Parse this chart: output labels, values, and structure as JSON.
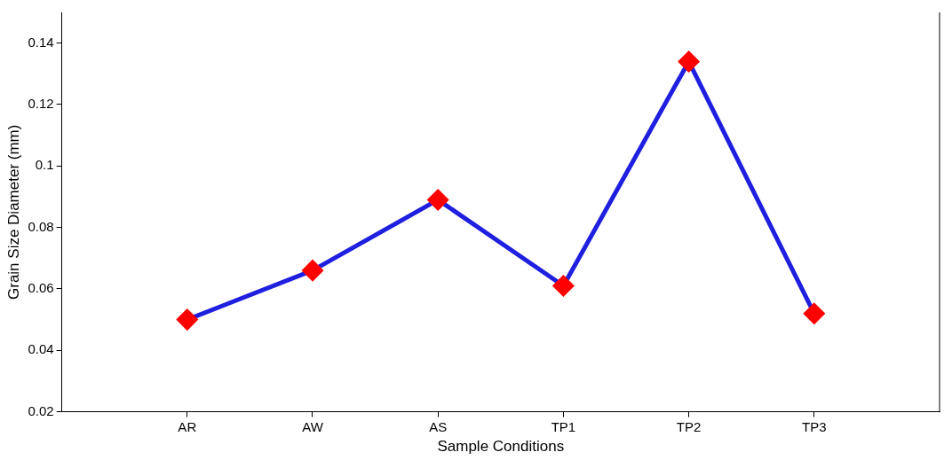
{
  "chart_data": {
    "type": "line",
    "xlabel": "Sample Conditions",
    "ylabel": "Grain Size Diameter (mm)",
    "categories": [
      "AR",
      "AW",
      "AS",
      "TP1",
      "TP2",
      "TP3"
    ],
    "series": [
      {
        "color": "#1f1fe0",
        "colors": [
          "#ff0000",
          "#ff0000",
          "#ff0000",
          "#ff0000",
          "#ff0000",
          "#ff0000"
        ],
        "values": [
          0.05,
          0.066,
          0.089,
          0.061,
          0.134,
          0.052
        ]
      }
    ],
    "ylim": [
      0.02,
      0.15
    ],
    "yticks": [
      0.02,
      0.04,
      0.06,
      0.08,
      0.1,
      0.12,
      0.14
    ],
    "grid": false,
    "legend": false,
    "marker": "diamond",
    "line_style": "solid"
  }
}
